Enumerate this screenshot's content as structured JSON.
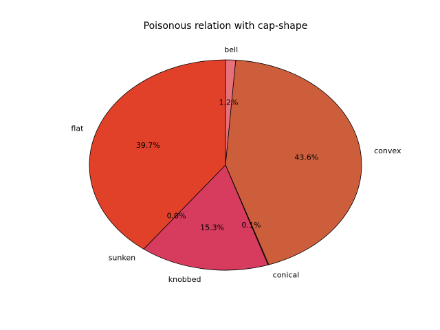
{
  "chart_data": {
    "type": "pie",
    "title": "Poisonous relation with cap-shape",
    "slices": [
      {
        "label": "bell",
        "percent": 1.2,
        "pct_text": "1.2%",
        "color": "#e8707a"
      },
      {
        "label": "convex",
        "percent": 43.6,
        "pct_text": "43.6%",
        "color": "#cd5e3c"
      },
      {
        "label": "conical",
        "percent": 0.1,
        "pct_text": "0.1%",
        "color": "#cd5e3c"
      },
      {
        "label": "knobbed",
        "percent": 15.3,
        "pct_text": "15.3%",
        "color": "#d73c5f"
      },
      {
        "label": "sunken",
        "percent": 0.0,
        "pct_text": "0.0%",
        "color": "#d7485a"
      },
      {
        "label": "flat",
        "percent": 39.7,
        "pct_text": "39.7%",
        "color": "#e14129"
      }
    ],
    "start_angle_deg": 90,
    "direction": "clockwise",
    "legend": "none"
  }
}
